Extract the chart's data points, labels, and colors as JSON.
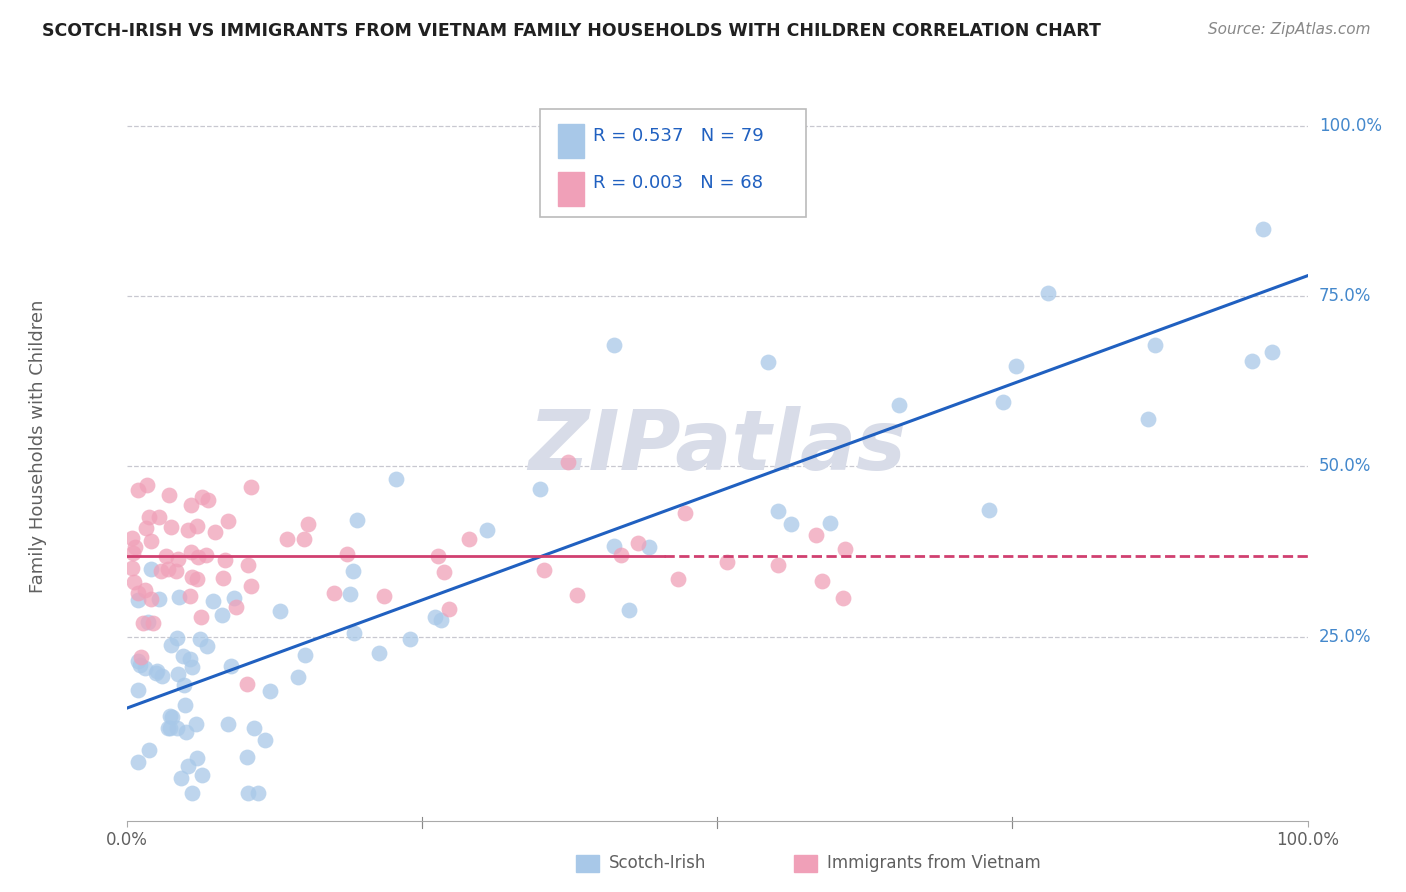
{
  "title": "SCOTCH-IRISH VS IMMIGRANTS FROM VIETNAM FAMILY HOUSEHOLDS WITH CHILDREN CORRELATION CHART",
  "source": "Source: ZipAtlas.com",
  "ylabel": "Family Households with Children",
  "legend1_label": "R = 0.537   N = 79",
  "legend2_label": "R = 0.003   N = 68",
  "scatter1_color": "#a8c8e8",
  "scatter2_color": "#f0a0b8",
  "line1_color": "#2060c0",
  "line2_color": "#d04070",
  "ytick_labels": [
    "25.0%",
    "50.0%",
    "75.0%",
    "100.0%"
  ],
  "ytick_values": [
    0.25,
    0.5,
    0.75,
    1.0
  ],
  "background_color": "#ffffff",
  "grid_color": "#c8c8d0",
  "watermark_color": "#d8dce8",
  "title_color": "#202020",
  "source_color": "#888888",
  "label_color": "#606060",
  "right_label_color": "#4488cc",
  "line1_y0": 0.145,
  "line1_y1": 0.78,
  "line2_y": 0.368,
  "line2_solid_x1": 0.455,
  "xlim": [
    0.0,
    1.0
  ],
  "ylim_min": -0.02,
  "ylim_max": 1.08
}
